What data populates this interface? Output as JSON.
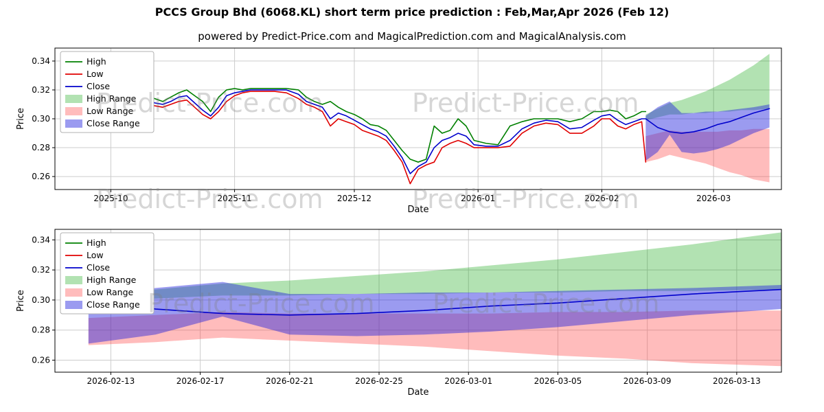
{
  "page": {
    "title": "PCCS Group Bhd (6068.KL) short term price prediction : Feb,Mar,Apr 2026 (Feb 12)",
    "subtitle": "powered by Predict-Price.com and MagicalPrediction.com and MagicalAnalysis.com",
    "watermark": "Predict-Price.com"
  },
  "chart_data": [
    {
      "type": "line",
      "name": "historical-and-forecast",
      "xlabel": "Date",
      "ylabel": "Price",
      "xlim": [
        -5,
        177
      ],
      "ylim": [
        0.251,
        0.349
      ],
      "grid": true,
      "legend_position": "upper-left",
      "xticks": [
        {
          "v": 9,
          "label": "2025-10"
        },
        {
          "v": 40,
          "label": "2025-11"
        },
        {
          "v": 70,
          "label": "2025-12"
        },
        {
          "v": 101,
          "label": "2026-01"
        },
        {
          "v": 132,
          "label": "2026-02"
        },
        {
          "v": 160,
          "label": "2026-03"
        }
      ],
      "yticks": [
        {
          "v": 0.26,
          "label": "0.26"
        },
        {
          "v": 0.28,
          "label": "0.28"
        },
        {
          "v": 0.3,
          "label": "0.30"
        },
        {
          "v": 0.32,
          "label": "0.32"
        },
        {
          "v": 0.34,
          "label": "0.34"
        }
      ],
      "legend": [
        {
          "label": "High",
          "type": "line",
          "color": "#008000"
        },
        {
          "label": "Low",
          "type": "line",
          "color": "#e00000"
        },
        {
          "label": "Close",
          "type": "line",
          "color": "#0000cc"
        },
        {
          "label": "High Range",
          "type": "patch",
          "color": "#00a000",
          "opacity": 0.3
        },
        {
          "label": "Low Range",
          "type": "patch",
          "color": "#ff4040",
          "opacity": 0.35
        },
        {
          "label": "Close Range",
          "type": "patch",
          "color": "#2222dd",
          "opacity": 0.45
        }
      ],
      "bands": [
        {
          "name": "High Range",
          "color": "#00a000",
          "opacity": 0.3,
          "x": [
            143,
            146,
            149,
            152,
            155,
            158,
            161,
            164,
            167,
            170,
            174
          ],
          "upper": [
            0.303,
            0.307,
            0.311,
            0.313,
            0.316,
            0.319,
            0.323,
            0.327,
            0.332,
            0.337,
            0.345
          ],
          "lower": [
            0.299,
            0.301,
            0.303,
            0.303,
            0.304,
            0.304,
            0.305,
            0.305,
            0.306,
            0.306,
            0.307
          ]
        },
        {
          "name": "Low Range",
          "color": "#ff4040",
          "opacity": 0.35,
          "x": [
            143,
            146,
            149,
            152,
            155,
            158,
            161,
            164,
            167,
            170,
            174
          ],
          "upper": [
            0.288,
            0.29,
            0.292,
            0.291,
            0.291,
            0.291,
            0.291,
            0.292,
            0.292,
            0.293,
            0.293
          ],
          "lower": [
            0.27,
            0.272,
            0.275,
            0.273,
            0.271,
            0.269,
            0.266,
            0.263,
            0.261,
            0.258,
            0.256
          ]
        },
        {
          "name": "Close Range",
          "color": "#2222dd",
          "opacity": 0.45,
          "x": [
            143,
            146,
            149,
            152,
            155,
            158,
            161,
            164,
            167,
            170,
            174
          ],
          "upper": [
            0.302,
            0.308,
            0.312,
            0.304,
            0.304,
            0.305,
            0.305,
            0.306,
            0.307,
            0.308,
            0.31
          ],
          "lower": [
            0.271,
            0.277,
            0.289,
            0.277,
            0.276,
            0.277,
            0.279,
            0.282,
            0.286,
            0.29,
            0.294
          ]
        }
      ],
      "lines": [
        {
          "name": "High",
          "color": "#008000",
          "x": [
            2,
            5,
            8,
            11,
            14,
            16,
            18,
            20,
            22,
            24,
            26,
            28,
            30,
            32,
            34,
            36,
            38,
            40,
            42,
            44,
            47,
            50,
            53,
            56,
            58,
            60,
            62,
            64,
            66,
            68,
            70,
            72,
            74,
            76,
            78,
            80,
            82,
            84,
            86,
            88,
            90,
            92,
            94,
            96,
            98,
            100,
            103,
            106,
            109,
            112,
            115,
            118,
            121,
            124,
            127,
            130,
            132,
            134,
            136,
            138,
            140,
            142,
            143
          ],
          "y": [
            0.32,
            0.321,
            0.32,
            0.318,
            0.315,
            0.312,
            0.316,
            0.314,
            0.312,
            0.315,
            0.318,
            0.32,
            0.316,
            0.312,
            0.305,
            0.315,
            0.32,
            0.321,
            0.32,
            0.321,
            0.321,
            0.321,
            0.321,
            0.32,
            0.315,
            0.312,
            0.31,
            0.312,
            0.308,
            0.305,
            0.303,
            0.3,
            0.296,
            0.295,
            0.292,
            0.285,
            0.278,
            0.272,
            0.27,
            0.272,
            0.295,
            0.29,
            0.292,
            0.3,
            0.295,
            0.285,
            0.283,
            0.282,
            0.295,
            0.298,
            0.3,
            0.3,
            0.3,
            0.298,
            0.3,
            0.305,
            0.305,
            0.306,
            0.305,
            0.3,
            0.302,
            0.305,
            0.305
          ]
        },
        {
          "name": "Low",
          "color": "#e00000",
          "x": [
            2,
            5,
            8,
            11,
            14,
            16,
            18,
            20,
            22,
            24,
            26,
            28,
            30,
            32,
            34,
            36,
            38,
            40,
            42,
            44,
            47,
            50,
            53,
            56,
            58,
            60,
            62,
            64,
            66,
            68,
            70,
            72,
            74,
            76,
            78,
            80,
            82,
            84,
            86,
            88,
            90,
            92,
            94,
            96,
            98,
            100,
            103,
            106,
            109,
            112,
            115,
            118,
            121,
            124,
            127,
            130,
            132,
            134,
            136,
            138,
            140,
            142,
            143
          ],
          "y": [
            0.317,
            0.318,
            0.315,
            0.31,
            0.309,
            0.308,
            0.31,
            0.309,
            0.308,
            0.31,
            0.312,
            0.313,
            0.308,
            0.303,
            0.3,
            0.305,
            0.312,
            0.316,
            0.318,
            0.319,
            0.319,
            0.319,
            0.318,
            0.314,
            0.31,
            0.308,
            0.305,
            0.295,
            0.3,
            0.298,
            0.296,
            0.292,
            0.29,
            0.288,
            0.285,
            0.278,
            0.27,
            0.255,
            0.265,
            0.268,
            0.27,
            0.28,
            0.283,
            0.285,
            0.283,
            0.28,
            0.28,
            0.28,
            0.281,
            0.29,
            0.295,
            0.297,
            0.296,
            0.29,
            0.29,
            0.295,
            0.3,
            0.3,
            0.295,
            0.293,
            0.296,
            0.298,
            0.27
          ]
        },
        {
          "name": "Close",
          "color": "#0000cc",
          "x": [
            2,
            5,
            8,
            11,
            14,
            16,
            18,
            20,
            22,
            24,
            26,
            28,
            30,
            32,
            34,
            36,
            38,
            40,
            42,
            44,
            47,
            50,
            53,
            56,
            58,
            60,
            62,
            64,
            66,
            68,
            70,
            72,
            74,
            76,
            78,
            80,
            82,
            84,
            86,
            88,
            90,
            92,
            94,
            96,
            98,
            100,
            103,
            106,
            109,
            112,
            115,
            118,
            121,
            124,
            127,
            130,
            132,
            134,
            136,
            138,
            140,
            142,
            143,
            146,
            149,
            152,
            155,
            158,
            161,
            164,
            167,
            170,
            174
          ],
          "y": [
            0.319,
            0.32,
            0.318,
            0.312,
            0.311,
            0.31,
            0.314,
            0.311,
            0.31,
            0.312,
            0.315,
            0.316,
            0.311,
            0.306,
            0.302,
            0.308,
            0.316,
            0.318,
            0.319,
            0.32,
            0.32,
            0.32,
            0.32,
            0.317,
            0.312,
            0.31,
            0.308,
            0.3,
            0.304,
            0.302,
            0.299,
            0.296,
            0.293,
            0.291,
            0.288,
            0.281,
            0.273,
            0.262,
            0.267,
            0.27,
            0.28,
            0.285,
            0.287,
            0.29,
            0.288,
            0.282,
            0.281,
            0.281,
            0.285,
            0.293,
            0.297,
            0.299,
            0.298,
            0.293,
            0.294,
            0.299,
            0.302,
            0.303,
            0.299,
            0.296,
            0.298,
            0.3,
            0.3,
            0.294,
            0.291,
            0.29,
            0.291,
            0.293,
            0.296,
            0.298,
            0.301,
            0.304,
            0.307
          ]
        }
      ]
    },
    {
      "type": "line",
      "name": "forecast-zoom",
      "xlabel": "Date",
      "ylabel": "Price",
      "xlim": [
        141.5,
        174
      ],
      "ylim": [
        0.252,
        0.347
      ],
      "grid": true,
      "legend_position": "upper-left",
      "xticks": [
        {
          "v": 144,
          "label": "2026-02-13"
        },
        {
          "v": 148,
          "label": "2026-02-17"
        },
        {
          "v": 152,
          "label": "2026-02-21"
        },
        {
          "v": 156,
          "label": "2026-02-25"
        },
        {
          "v": 160,
          "label": "2026-03-01"
        },
        {
          "v": 164,
          "label": "2026-03-05"
        },
        {
          "v": 168,
          "label": "2026-03-09"
        },
        {
          "v": 172,
          "label": "2026-03-13"
        }
      ],
      "yticks": [
        {
          "v": 0.26,
          "label": "0.26"
        },
        {
          "v": 0.28,
          "label": "0.28"
        },
        {
          "v": 0.3,
          "label": "0.30"
        },
        {
          "v": 0.32,
          "label": "0.32"
        },
        {
          "v": 0.34,
          "label": "0.34"
        }
      ],
      "legend": [
        {
          "label": "High",
          "type": "line",
          "color": "#008000"
        },
        {
          "label": "Low",
          "type": "line",
          "color": "#e00000"
        },
        {
          "label": "Close",
          "type": "line",
          "color": "#0000cc"
        },
        {
          "label": "High Range",
          "type": "patch",
          "color": "#00a000",
          "opacity": 0.3
        },
        {
          "label": "Low Range",
          "type": "patch",
          "color": "#ff4040",
          "opacity": 0.35
        },
        {
          "label": "Close Range",
          "type": "patch",
          "color": "#2222dd",
          "opacity": 0.45
        }
      ],
      "bands": [
        {
          "name": "High Range",
          "color": "#00a000",
          "opacity": 0.3,
          "x": [
            143,
            146,
            149,
            152,
            155,
            158,
            161,
            164,
            167,
            170,
            174
          ],
          "upper": [
            0.303,
            0.307,
            0.311,
            0.313,
            0.316,
            0.319,
            0.323,
            0.327,
            0.332,
            0.337,
            0.345
          ],
          "lower": [
            0.299,
            0.301,
            0.303,
            0.303,
            0.304,
            0.304,
            0.305,
            0.305,
            0.306,
            0.306,
            0.307
          ]
        },
        {
          "name": "Low Range",
          "color": "#ff4040",
          "opacity": 0.35,
          "x": [
            143,
            146,
            149,
            152,
            155,
            158,
            161,
            164,
            167,
            170,
            174
          ],
          "upper": [
            0.288,
            0.29,
            0.292,
            0.291,
            0.291,
            0.291,
            0.291,
            0.292,
            0.292,
            0.293,
            0.293
          ],
          "lower": [
            0.27,
            0.272,
            0.275,
            0.273,
            0.271,
            0.269,
            0.266,
            0.263,
            0.261,
            0.258,
            0.256
          ]
        },
        {
          "name": "Close Range",
          "color": "#2222dd",
          "opacity": 0.45,
          "x": [
            143,
            146,
            149,
            152,
            155,
            158,
            161,
            164,
            167,
            170,
            174
          ],
          "upper": [
            0.302,
            0.308,
            0.312,
            0.304,
            0.304,
            0.305,
            0.305,
            0.306,
            0.307,
            0.308,
            0.31
          ],
          "lower": [
            0.271,
            0.277,
            0.289,
            0.277,
            0.276,
            0.277,
            0.279,
            0.282,
            0.286,
            0.29,
            0.294
          ]
        }
      ],
      "lines": [
        {
          "name": "Close",
          "color": "#0000cc",
          "x": [
            143,
            146,
            149,
            152,
            155,
            158,
            161,
            164,
            167,
            170,
            174
          ],
          "y": [
            0.3,
            0.294,
            0.291,
            0.29,
            0.291,
            0.293,
            0.296,
            0.298,
            0.301,
            0.304,
            0.307
          ]
        }
      ]
    }
  ]
}
